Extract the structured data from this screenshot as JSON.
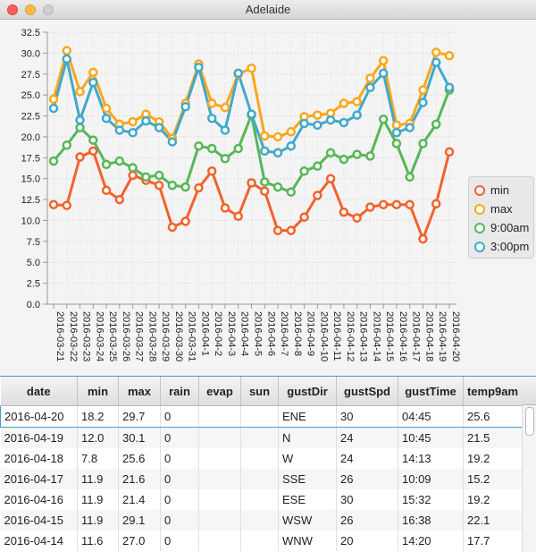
{
  "window": {
    "title": "Adelaide"
  },
  "legend": [
    {
      "name": "min",
      "color": "#f3622d"
    },
    {
      "name": "max",
      "color": "#fba71b"
    },
    {
      "name": "9:00am",
      "color": "#57b757"
    },
    {
      "name": "3:00pm",
      "color": "#41a9c9"
    }
  ],
  "chart_data": {
    "type": "line",
    "title": "",
    "xlabel": "",
    "ylabel": "",
    "ylim": [
      0,
      32.5
    ],
    "yticks": [
      "0.0",
      "2.5",
      "5.0",
      "7.5",
      "10.0",
      "12.5",
      "15.0",
      "17.5",
      "20.0",
      "22.5",
      "25.0",
      "27.5",
      "30.0",
      "32.5"
    ],
    "grid": true,
    "legend_position": "right",
    "categories": [
      "2016-03-21",
      "2016-03-22",
      "2016-03-23",
      "2016-03-24",
      "2016-03-25",
      "2016-03-26",
      "2016-03-27",
      "2016-03-28",
      "2016-03-29",
      "2016-03-30",
      "2016-03-31",
      "2016-04-1",
      "2016-04-2",
      "2016-04-3",
      "2016-04-4",
      "2016-04-5",
      "2016-04-6",
      "2016-04-7",
      "2016-04-8",
      "2016-04-9",
      "2016-04-10",
      "2016-04-11",
      "2016-04-12",
      "2016-04-13",
      "2016-04-14",
      "2016-04-15",
      "2016-04-16",
      "2016-04-17",
      "2016-04-18",
      "2016-04-19",
      "2016-04-20"
    ],
    "series": [
      {
        "name": "min",
        "color": "#f3622d",
        "values": [
          11.9,
          11.8,
          17.6,
          18.3,
          13.6,
          12.5,
          15.4,
          14.8,
          14.2,
          9.2,
          9.9,
          13.9,
          15.9,
          11.5,
          10.5,
          14.5,
          13.5,
          8.8,
          8.8,
          10.4,
          13.0,
          15.0,
          11.0,
          10.3,
          11.6,
          11.9,
          11.9,
          11.9,
          7.8,
          12.0,
          18.2
        ]
      },
      {
        "name": "max",
        "color": "#fba71b",
        "values": [
          24.5,
          30.3,
          25.4,
          27.7,
          23.4,
          21.5,
          21.8,
          22.7,
          21.8,
          19.8,
          24.0,
          28.7,
          24.0,
          23.5,
          27.5,
          28.2,
          20.1,
          20.0,
          20.6,
          22.4,
          22.6,
          22.8,
          24.0,
          24.2,
          27.0,
          29.1,
          21.4,
          21.6,
          25.6,
          30.1,
          29.7
        ]
      },
      {
        "name": "9:00am",
        "color": "#57b757",
        "values": [
          17.1,
          19.0,
          21.1,
          19.6,
          16.7,
          17.1,
          16.3,
          15.2,
          15.4,
          14.2,
          14.0,
          18.9,
          18.6,
          17.4,
          18.6,
          22.6,
          14.6,
          14.0,
          13.4,
          15.9,
          16.5,
          18.1,
          17.3,
          17.9,
          17.7,
          22.1,
          19.2,
          15.2,
          19.2,
          21.5,
          25.6
        ]
      },
      {
        "name": "3:00pm",
        "color": "#41a9c9",
        "values": [
          23.4,
          29.3,
          22.0,
          26.5,
          22.2,
          20.8,
          20.5,
          21.9,
          21.1,
          19.4,
          23.6,
          28.3,
          22.2,
          20.8,
          27.6,
          22.7,
          18.3,
          18.1,
          18.9,
          21.6,
          21.4,
          22.0,
          21.7,
          22.6,
          25.9,
          27.6,
          20.5,
          21.1,
          24.1,
          28.9,
          25.9
        ]
      }
    ]
  },
  "table": {
    "columns": [
      "date",
      "min",
      "max",
      "rain",
      "evap",
      "sun",
      "gustDir",
      "gustSpd",
      "gustTime",
      "temp9am"
    ],
    "rows": [
      [
        "2016-04-20",
        "18.2",
        "29.7",
        "0",
        "",
        "",
        "ENE",
        "30",
        "04:45",
        "25.6"
      ],
      [
        "2016-04-19",
        "12.0",
        "30.1",
        "0",
        "",
        "",
        "N",
        "24",
        "10:45",
        "21.5"
      ],
      [
        "2016-04-18",
        "7.8",
        "25.6",
        "0",
        "",
        "",
        "W",
        "24",
        "14:13",
        "19.2"
      ],
      [
        "2016-04-17",
        "11.9",
        "21.6",
        "0",
        "",
        "",
        "SSE",
        "26",
        "10:09",
        "15.2"
      ],
      [
        "2016-04-16",
        "11.9",
        "21.4",
        "0",
        "",
        "",
        "ESE",
        "30",
        "15:32",
        "19.2"
      ],
      [
        "2016-04-15",
        "11.9",
        "29.1",
        "0",
        "",
        "",
        "WSW",
        "26",
        "16:38",
        "22.1"
      ],
      [
        "2016-04-14",
        "11.6",
        "27.0",
        "0",
        "",
        "",
        "WNW",
        "20",
        "14:20",
        "17.7"
      ]
    ],
    "selected_row": 0
  }
}
